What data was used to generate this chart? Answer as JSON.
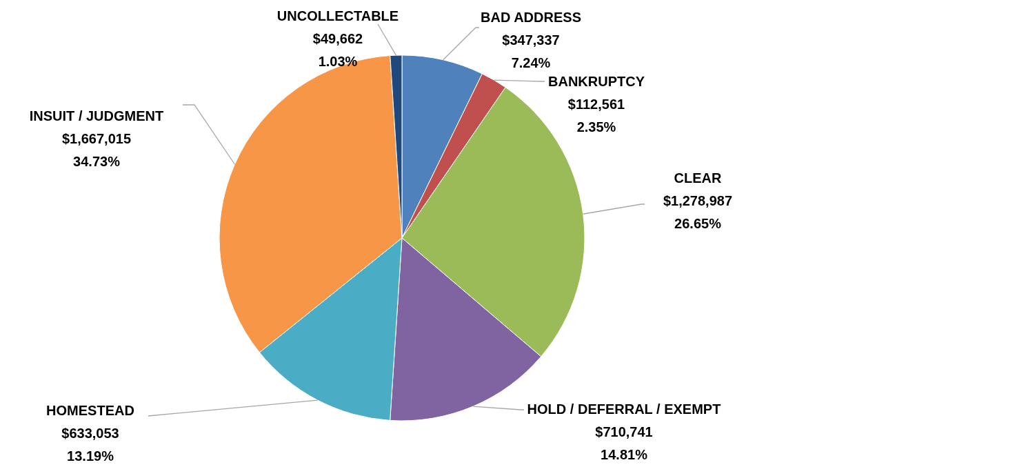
{
  "chart_data": {
    "type": "pie",
    "categories": [
      "BAD ADDRESS",
      "BANKRUPTCY",
      "CLEAR",
      "HOLD / DEFERRAL / EXEMPT",
      "HOMESTEAD",
      "INSUIT / JUDGMENT",
      "UNCOLLECTABLE"
    ],
    "values": [
      347337,
      112561,
      1278987,
      710741,
      633053,
      1667015,
      49662
    ],
    "colors": [
      "#4f81bd",
      "#c0504d",
      "#9bbb59",
      "#8064a2",
      "#4bacc6",
      "#f79646",
      "#1f497d"
    ],
    "value_labels": [
      "$347,337\n7.24%",
      "$112,561\n2.35%",
      "$1,278,987\n26.65%",
      "$710,741\n14.81%",
      "$633,053\n13.19%",
      "$1,667,015\n34.73%",
      "$49,662\n1.03%"
    ],
    "legend": false
  }
}
